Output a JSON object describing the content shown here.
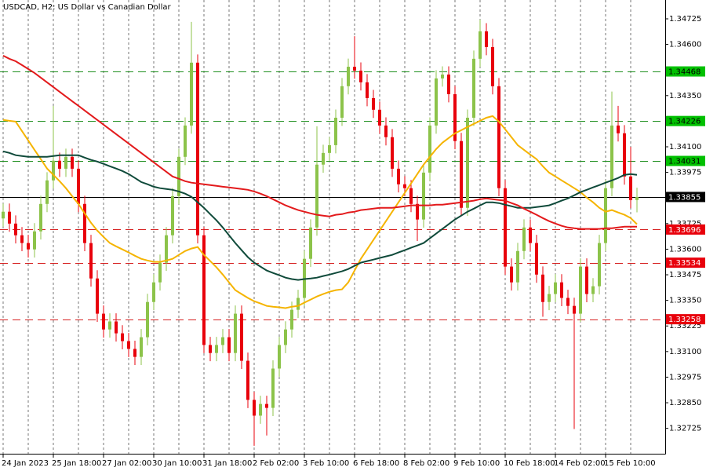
{
  "chart_data": {
    "type": "candlestick",
    "title": "USDCAD, H2:  US Dollar vs Canadian Dollar",
    "categories": [
      "24 Jan 2023",
      null,
      null,
      null,
      null,
      null,
      null,
      null,
      "25 Jan 18:00",
      null,
      null,
      null,
      null,
      null,
      null,
      null,
      "27 Jan 02:00",
      null,
      null,
      null,
      null,
      null,
      null,
      null,
      "30 Jan 10:00",
      null,
      null,
      null,
      null,
      null,
      null,
      null,
      "31 Jan 18:00",
      null,
      null,
      null,
      null,
      null,
      null,
      null,
      "2 Feb 02:00",
      null,
      null,
      null,
      null,
      null,
      null,
      null,
      "3 Feb 10:00",
      null,
      null,
      null,
      null,
      null,
      null,
      null,
      "6 Feb 18:00",
      null,
      null,
      null,
      null,
      null,
      null,
      null,
      "8 Feb 02:00",
      null,
      null,
      null,
      null,
      null,
      null,
      null,
      "9 Feb 10:00",
      null,
      null,
      null,
      null,
      null,
      null,
      null,
      "10 Feb 18:00",
      null,
      null,
      null,
      null,
      null,
      null,
      null,
      "14 Feb 02:00",
      null,
      null,
      null,
      null,
      null,
      null,
      null,
      "15 Feb 10:00",
      null,
      null,
      null,
      null,
      null
    ],
    "open": [
      1.3375,
      1.33783,
      1.33725,
      1.33668,
      1.3363,
      1.33599,
      1.33687,
      1.33821,
      1.33936,
      1.34032,
      1.33993,
      1.34051,
      1.33993,
      1.33821,
      1.3363,
      1.33457,
      1.33285,
      1.33208,
      1.33247,
      1.33189,
      1.33151,
      1.33113,
      1.33074,
      1.3317,
      1.33342,
      1.33438,
      1.33534,
      1.33668,
      1.33859,
      1.34051,
      1.34204,
      1.34511,
      1.33668,
      1.33132,
      1.33093,
      1.33132,
      1.3317,
      1.33093,
      1.33285,
      1.33055,
      1.32864,
      1.32787,
      1.32844,
      1.32825,
      1.33017,
      1.33132,
      1.33208,
      1.33304,
      1.33362,
      1.33553,
      1.33706,
      1.34013,
      1.3407,
      1.34108,
      1.34242,
      1.34396,
      1.34491,
      1.34472,
      1.34415,
      1.34338,
      1.34281,
      1.34204,
      1.34147,
      1.33993,
      1.33917,
      1.33898,
      1.33821,
      1.33745,
      1.33974,
      1.34204,
      1.34434,
      1.34453,
      1.34357,
      1.34128,
      1.33802,
      1.34242,
      1.3453,
      1.34664,
      1.34587,
      1.34396,
      1.33898,
      1.33515,
      1.33438,
      1.33591,
      1.33706,
      1.3363,
      1.33476,
      1.33342,
      1.33381,
      1.33438,
      1.33362,
      1.33323,
      1.33285,
      1.33515,
      1.33381,
      1.33419,
      1.3363,
      1.33898,
      1.34204,
      1.34166,
      1.33955,
      1.3384
    ],
    "high": [
      1.33823,
      1.33823,
      1.33765,
      1.33708,
      1.3367,
      1.33727,
      1.33861,
      1.33976,
      1.343,
      1.34072,
      1.34091,
      1.34091,
      1.34033,
      1.33861,
      1.3367,
      1.33497,
      1.33325,
      1.33287,
      1.33287,
      1.33229,
      1.33191,
      1.33153,
      1.3321,
      1.33382,
      1.33478,
      1.33574,
      1.33708,
      1.33899,
      1.34091,
      1.34244,
      1.3471,
      1.34551,
      1.33708,
      1.33172,
      1.33172,
      1.3321,
      1.3321,
      1.33325,
      1.33325,
      1.33095,
      1.32904,
      1.32884,
      1.32884,
      1.33057,
      1.33172,
      1.33248,
      1.33344,
      1.33402,
      1.33593,
      1.33746,
      1.342,
      1.3411,
      1.34148,
      1.34282,
      1.34436,
      1.34531,
      1.3464,
      1.34512,
      1.34455,
      1.34378,
      1.34321,
      1.34244,
      1.34187,
      1.34033,
      1.33957,
      1.33938,
      1.33861,
      1.34014,
      1.34244,
      1.34474,
      1.34493,
      1.34493,
      1.34397,
      1.34168,
      1.34282,
      1.3457,
      1.34721,
      1.34704,
      1.34627,
      1.34436,
      1.33938,
      1.33555,
      1.33631,
      1.33746,
      1.33746,
      1.3367,
      1.33516,
      1.33421,
      1.33478,
      1.33478,
      1.33402,
      1.33363,
      1.33555,
      1.33555,
      1.33459,
      1.3367,
      1.33938,
      1.3437,
      1.343,
      1.34206,
      1.341,
      1.339
    ],
    "low": [
      1.3371,
      1.33685,
      1.33628,
      1.3359,
      1.33559,
      1.33559,
      1.33647,
      1.33781,
      1.33896,
      1.33953,
      1.33953,
      1.33953,
      1.33781,
      1.3359,
      1.33417,
      1.33245,
      1.33168,
      1.33168,
      1.33149,
      1.33111,
      1.33073,
      1.33034,
      1.33034,
      1.3313,
      1.33302,
      1.33398,
      1.33494,
      1.33628,
      1.33819,
      1.34011,
      1.34164,
      1.33628,
      1.33092,
      1.33053,
      1.33053,
      1.33092,
      1.33053,
      1.33053,
      1.33015,
      1.32824,
      1.3264,
      1.32747,
      1.3269,
      1.32785,
      1.32977,
      1.33092,
      1.33168,
      1.33264,
      1.33322,
      1.33513,
      1.33666,
      1.33973,
      1.3403,
      1.34068,
      1.34202,
      1.34356,
      1.34432,
      1.34375,
      1.34298,
      1.34241,
      1.34164,
      1.34107,
      1.33953,
      1.33877,
      1.33858,
      1.33781,
      1.3364,
      1.33705,
      1.33934,
      1.34164,
      1.34394,
      1.34317,
      1.34088,
      1.33762,
      1.33762,
      1.34202,
      1.3449,
      1.34547,
      1.34356,
      1.33858,
      1.33475,
      1.33398,
      1.33398,
      1.33551,
      1.3359,
      1.33436,
      1.3327,
      1.33302,
      1.33341,
      1.33322,
      1.33283,
      1.32722,
      1.33245,
      1.33341,
      1.33341,
      1.33379,
      1.3359,
      1.33858,
      1.34126,
      1.33915,
      1.338,
      1.3378
    ],
    "close": [
      1.33783,
      1.33725,
      1.33668,
      1.3363,
      1.33599,
      1.33687,
      1.33821,
      1.33936,
      1.34032,
      1.33993,
      1.34051,
      1.33993,
      1.33821,
      1.3363,
      1.33457,
      1.33285,
      1.33208,
      1.33247,
      1.33189,
      1.33151,
      1.33113,
      1.33074,
      1.3317,
      1.33342,
      1.33438,
      1.33534,
      1.33668,
      1.33859,
      1.34051,
      1.34204,
      1.34511,
      1.33668,
      1.33132,
      1.33093,
      1.33132,
      1.3317,
      1.33093,
      1.33285,
      1.33055,
      1.32864,
      1.32787,
      1.32844,
      1.32825,
      1.33017,
      1.33132,
      1.33208,
      1.33304,
      1.33362,
      1.33553,
      1.33706,
      1.34013,
      1.3407,
      1.34108,
      1.34242,
      1.34396,
      1.34491,
      1.34472,
      1.34415,
      1.34338,
      1.34281,
      1.34204,
      1.34147,
      1.33993,
      1.33917,
      1.33898,
      1.33821,
      1.33745,
      1.33974,
      1.34204,
      1.34434,
      1.34453,
      1.34357,
      1.34128,
      1.33802,
      1.34242,
      1.3453,
      1.34664,
      1.34587,
      1.34396,
      1.33898,
      1.33515,
      1.33438,
      1.33591,
      1.33706,
      1.3363,
      1.33476,
      1.33342,
      1.33381,
      1.33438,
      1.33362,
      1.33323,
      1.33285,
      1.33515,
      1.33381,
      1.33419,
      1.3363,
      1.33898,
      1.34204,
      1.34166,
      1.33955,
      1.3384,
      1.33855
    ],
    "up_color": "#8cc34a",
    "down_color": "#e8000b",
    "series": [
      {
        "color": "#f5b400",
        "values": [
          1.34231,
          1.34227,
          1.34223,
          1.34177,
          1.34131,
          1.34085,
          1.3404,
          1.33994,
          1.33963,
          1.33932,
          1.33898,
          1.33859,
          1.33821,
          1.33775,
          1.33729,
          1.33691,
          1.3366,
          1.3363,
          1.33614,
          1.33599,
          1.33584,
          1.33568,
          1.33553,
          1.33545,
          1.33538,
          1.33538,
          1.33545,
          1.33553,
          1.33572,
          1.33591,
          1.33603,
          1.33611,
          1.33572,
          1.33542,
          1.33511,
          1.33476,
          1.33438,
          1.334,
          1.33381,
          1.33362,
          1.33346,
          1.33335,
          1.33323,
          1.33319,
          1.33316,
          1.33312,
          1.33319,
          1.33323,
          1.33339,
          1.33354,
          1.33369,
          1.33381,
          1.33392,
          1.334,
          1.33404,
          1.33438,
          1.33496,
          1.33553,
          1.33599,
          1.33645,
          1.33691,
          1.33737,
          1.33783,
          1.33829,
          1.33875,
          1.33921,
          1.33967,
          1.34013,
          1.34051,
          1.34089,
          1.3412,
          1.34143,
          1.34166,
          1.34181,
          1.34197,
          1.34212,
          1.34227,
          1.34242,
          1.3425,
          1.34223,
          1.34185,
          1.34147,
          1.34108,
          1.34085,
          1.34062,
          1.3404,
          1.34005,
          1.33974,
          1.33955,
          1.33936,
          1.33917,
          1.33898,
          1.33879,
          1.33852,
          1.33829,
          1.33802,
          1.33783,
          1.33791,
          1.33779,
          1.33768,
          1.33752,
          1.33722
        ]
      },
      {
        "color": "#0f4a3a",
        "values": [
          1.34078,
          1.3407,
          1.34059,
          1.34055,
          1.34051,
          1.34051,
          1.34051,
          1.34051,
          1.34055,
          1.34059,
          1.34059,
          1.34059,
          1.34059,
          1.34047,
          1.34036,
          1.34028,
          1.34017,
          1.34005,
          1.33994,
          1.33982,
          1.33967,
          1.33948,
          1.33928,
          1.33917,
          1.33905,
          1.33898,
          1.33894,
          1.3389,
          1.33882,
          1.33871,
          1.33856,
          1.33829,
          1.33802,
          1.33771,
          1.33741,
          1.33706,
          1.33668,
          1.3363,
          1.33595,
          1.33561,
          1.33534,
          1.33515,
          1.33496,
          1.33484,
          1.33473,
          1.33461,
          1.33454,
          1.3345,
          1.33454,
          1.33457,
          1.33461,
          1.33469,
          1.33476,
          1.33484,
          1.33492,
          1.33503,
          1.33519,
          1.33534,
          1.33542,
          1.33549,
          1.33557,
          1.33565,
          1.33572,
          1.33584,
          1.33595,
          1.33607,
          1.33618,
          1.3363,
          1.33653,
          1.33676,
          1.33699,
          1.33722,
          1.33745,
          1.33764,
          1.33783,
          1.33798,
          1.33814,
          1.33829,
          1.33829,
          1.33825,
          1.33817,
          1.3381,
          1.33802,
          1.33802,
          1.33802,
          1.33806,
          1.3381,
          1.33814,
          1.33825,
          1.33837,
          1.33848,
          1.33863,
          1.33879,
          1.3389,
          1.33902,
          1.33913,
          1.33925,
          1.33936,
          1.33948,
          1.33963,
          1.33967,
          1.33963
        ]
      },
      {
        "color": "#e31a1c",
        "values": [
          1.34545,
          1.3453,
          1.34518,
          1.34499,
          1.3448,
          1.34461,
          1.34438,
          1.34415,
          1.34392,
          1.34369,
          1.34346,
          1.34323,
          1.343,
          1.34277,
          1.34254,
          1.34231,
          1.34208,
          1.34185,
          1.34162,
          1.34139,
          1.34116,
          1.34093,
          1.3407,
          1.34047,
          1.34024,
          1.34001,
          1.33978,
          1.33955,
          1.33944,
          1.33932,
          1.33925,
          1.33921,
          1.33917,
          1.33913,
          1.33909,
          1.33905,
          1.33902,
          1.33898,
          1.33894,
          1.3389,
          1.33882,
          1.33871,
          1.33859,
          1.33844,
          1.33829,
          1.33814,
          1.33802,
          1.33791,
          1.33783,
          1.33775,
          1.33768,
          1.33764,
          1.3376,
          1.33768,
          1.33771,
          1.33779,
          1.33783,
          1.33791,
          1.33794,
          1.33798,
          1.33802,
          1.33802,
          1.33802,
          1.33806,
          1.3381,
          1.33814,
          1.33814,
          1.33814,
          1.33814,
          1.33817,
          1.33817,
          1.33821,
          1.33825,
          1.33829,
          1.33833,
          1.33837,
          1.33844,
          1.33848,
          1.33844,
          1.3384,
          1.33837,
          1.33825,
          1.33814,
          1.33798,
          1.33783,
          1.33768,
          1.33752,
          1.33737,
          1.33725,
          1.33714,
          1.33706,
          1.33702,
          1.33699,
          1.33699,
          1.33699,
          1.33699,
          1.33702,
          1.33702,
          1.33706,
          1.3371,
          1.3371,
          1.3371
        ]
      }
    ],
    "levels": [
      {
        "value": 1.34468,
        "color": "#1f8f1f",
        "label_color": "#00c000",
        "text_color": "#000000",
        "style": "dashed"
      },
      {
        "value": 1.34226,
        "color": "#1f8f1f",
        "label_color": "#00c000",
        "text_color": "#000000",
        "style": "dashed"
      },
      {
        "value": 1.34031,
        "color": "#1f8f1f",
        "label_color": "#00c000",
        "text_color": "#000000",
        "style": "dashed"
      },
      {
        "value": 1.33696,
        "color": "#d62020",
        "label_color": "#e8000b",
        "text_color": "#ffffff",
        "style": "dashed"
      },
      {
        "value": 1.33534,
        "color": "#d62020",
        "label_color": "#e8000b",
        "text_color": "#ffffff",
        "style": "dashed"
      },
      {
        "value": 1.33258,
        "color": "#d62020",
        "label_color": "#e8000b",
        "text_color": "#ffffff",
        "style": "dashed"
      },
      {
        "value": 1.33855,
        "color": "#000000",
        "label_color": "#000000",
        "text_color": "#ffffff",
        "style": "solid"
      }
    ],
    "ylim": [
      1.32601,
      1.34817
    ],
    "yticks": [
      1.34725,
      {
        "value": 1.346,
        "label": "1.34600"
      },
      {
        "value": 1.3435,
        "label": "1.34350"
      },
      {
        "value": 1.341,
        "label": "1.34100"
      },
      1.33975,
      1.33725,
      {
        "value": 1.336,
        "label": "1.33600"
      },
      1.33475,
      {
        "value": 1.3335,
        "label": "1.33350"
      },
      1.33225,
      {
        "value": 1.331,
        "label": "1.33100"
      },
      1.32975,
      {
        "value": 1.3285,
        "label": "1.32850"
      },
      1.32725
    ],
    "grid": true
  }
}
